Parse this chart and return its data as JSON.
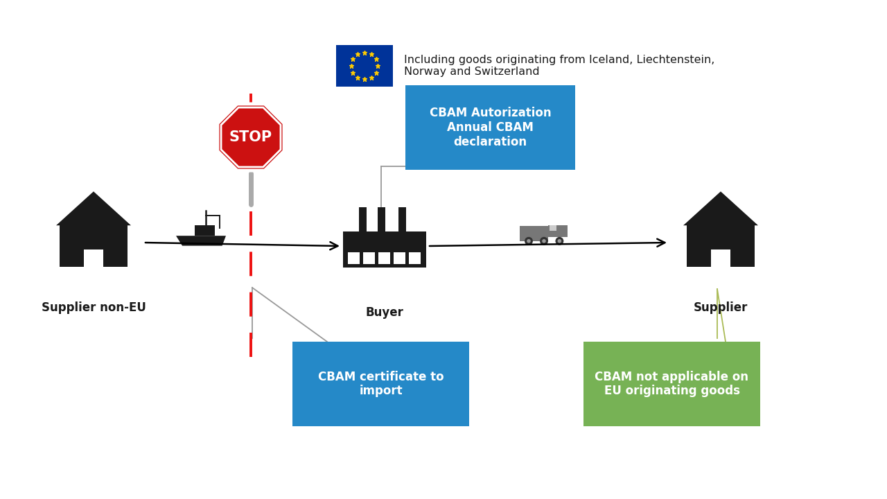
{
  "background_color": "#ffffff",
  "eu_flag_color_blue": "#003399",
  "eu_flag_color_yellow": "#FFCC00",
  "eu_text": "Including goods originating from Iceland, Liechtenstein,\nNorway and Switzerland",
  "cbam_auth_box_color": "#2589C8",
  "cbam_auth_text": "CBAM Autorization\nAnnual CBAM\ndeclaration",
  "cbam_cert_box_color": "#2589C8",
  "cbam_cert_text": "CBAM certificate to\nimport",
  "cbam_nonapplicable_box_color": "#77B255",
  "cbam_nonapplicable_text": "CBAM not applicable on\nEU originating goods",
  "supplier_noneu_label": "Supplier non-EU",
  "buyer_label": "Buyer",
  "supplier_label": "Supplier",
  "arrow_color": "#000000",
  "dashed_line_color": "#EE1111",
  "connector_line_color": "#999999",
  "connector_line_color2": "#AABB55",
  "stop_sign_red": "#CC1111",
  "stop_sign_white": "#ffffff",
  "icon_color": "#1a1a1a",
  "truck_color": "#666666",
  "post_color": "#aaaaaa"
}
